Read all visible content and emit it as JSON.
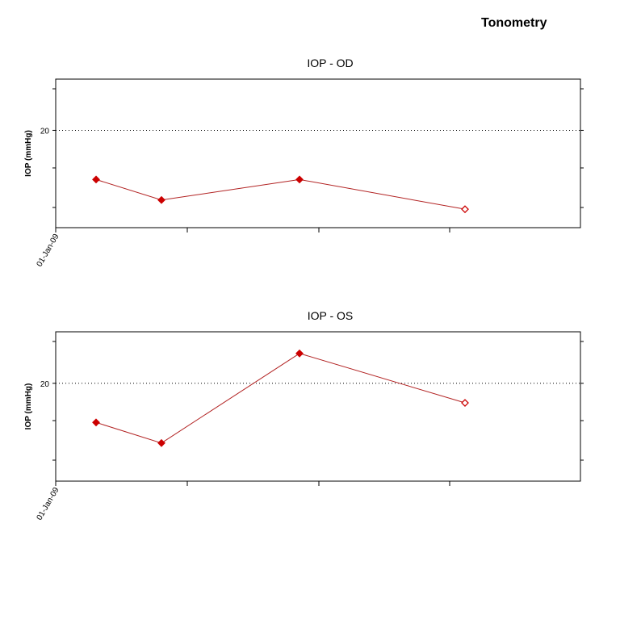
{
  "page": {
    "title": "Tonometry"
  },
  "colors": {
    "series": "#cc0000",
    "line": "#b22222",
    "axis": "#000000",
    "grid": "#000000"
  },
  "chart_data": [
    {
      "type": "line",
      "title": "IOP - OD",
      "xlabel": "",
      "ylabel": "IOP (mmHg)",
      "x_tick_labels": [
        "01-Jan-09"
      ],
      "y_tick_labels": [
        "20"
      ],
      "y_ticks": [
        20
      ],
      "ylim": [
        10.5,
        25
      ],
      "grid": "dotted horizontal line at 20",
      "series": [
        {
          "values": [
            {
              "y": 15.2,
              "filled": true
            },
            {
              "y": 13.2,
              "filled": true
            },
            {
              "y": 15.2,
              "filled": true
            },
            {
              "y": 12.3,
              "filled": false
            }
          ]
        }
      ]
    },
    {
      "type": "line",
      "title": "IOP - OS",
      "xlabel": "",
      "ylabel": "IOP (mmHg)",
      "x_tick_labels": [
        "01-Jan-09"
      ],
      "y_tick_labels": [
        "20"
      ],
      "y_ticks": [
        20
      ],
      "ylim": [
        10.5,
        25
      ],
      "grid": "dotted horizontal line at 20",
      "series": [
        {
          "values": [
            {
              "y": 16.2,
              "filled": true
            },
            {
              "y": 14.2,
              "filled": true
            },
            {
              "y": 22.9,
              "filled": true
            },
            {
              "y": 18.1,
              "filled": false
            }
          ]
        }
      ]
    }
  ]
}
